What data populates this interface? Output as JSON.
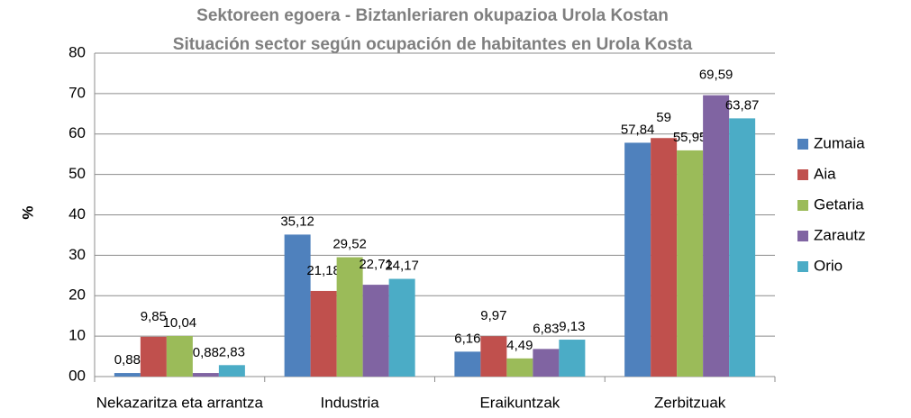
{
  "chart_data": {
    "type": "bar",
    "title": "Sektoreen egoera - Biztanleriaren okupazioa Urola Kostan",
    "subtitle": "Situación sector según ocupación de habitantes en Urola Kosta",
    "y_label": "%",
    "categories": [
      "Nekazaritza eta arrantza",
      "Industria",
      "Eraikuntzak",
      "Zerbitzuak"
    ],
    "series": [
      {
        "name": "Zumaia",
        "color": "#4f81bd",
        "values": [
          0.88,
          35.12,
          6.16,
          57.84
        ],
        "value_labels": [
          "0,88",
          "35,12",
          "6,16",
          "57,84"
        ]
      },
      {
        "name": "Aia",
        "color": "#c0504d",
        "values": [
          9.85,
          21.18,
          9.97,
          59
        ],
        "value_labels": [
          "9,85",
          "21,18",
          "9,97",
          "59"
        ]
      },
      {
        "name": "Getaria",
        "color": "#9bbb59",
        "values": [
          10.04,
          29.52,
          4.49,
          55.95
        ],
        "value_labels": [
          "10,04",
          "29,52",
          "4,49",
          "55,95"
        ]
      },
      {
        "name": "Zarautz",
        "color": "#8064a2",
        "values": [
          0.88,
          22.71,
          6.83,
          69.59
        ],
        "value_labels": [
          "0,88",
          "22,71",
          "6,83",
          "69,59"
        ]
      },
      {
        "name": "Orio",
        "color": "#4bacc6",
        "values": [
          2.83,
          24.17,
          9.13,
          63.87
        ],
        "value_labels": [
          "2,83",
          "24,17",
          "9,13",
          "63,87"
        ]
      }
    ],
    "ylim": [
      0,
      80
    ],
    "yticks": [
      {
        "value": 0,
        "label": "00"
      },
      10,
      20,
      30,
      40,
      50,
      60,
      70,
      80
    ],
    "grid": true,
    "legend": "right"
  }
}
